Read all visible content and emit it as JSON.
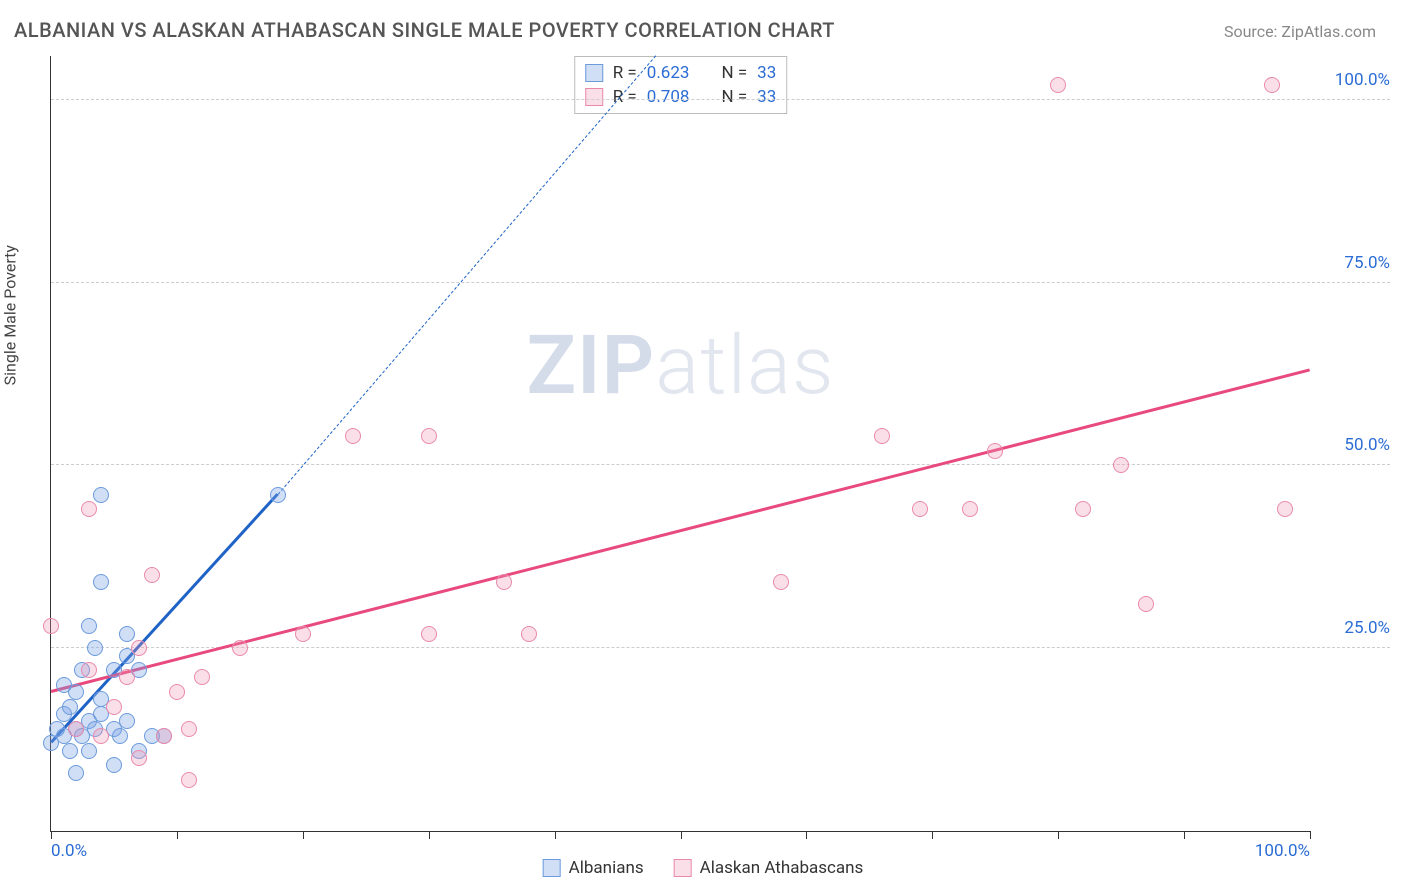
{
  "title": "ALBANIAN VS ALASKAN ATHABASCAN SINGLE MALE POVERTY CORRELATION CHART",
  "source": "Source: ZipAtlas.com",
  "ylabel": "Single Male Poverty",
  "watermark_zip": "ZIP",
  "watermark_atlas": "atlas",
  "chart": {
    "type": "scatter",
    "xlim": [
      0,
      100
    ],
    "ylim": [
      0,
      106
    ],
    "grid_color": "#cccccc",
    "background_color": "#ffffff",
    "y_ticks": [
      25,
      50,
      75,
      100
    ],
    "y_tick_labels": [
      "25.0%",
      "50.0%",
      "75.0%",
      "100.0%"
    ],
    "x_ticks": [
      0,
      10,
      20,
      30,
      40,
      50,
      60,
      70,
      80,
      90,
      100
    ],
    "x_end_labels": {
      "0": "0.0%",
      "100": "100.0%"
    },
    "marker_radius": 8,
    "marker_border_width": 1.5,
    "series": [
      {
        "name": "Albanians",
        "fill": "rgba(120,160,230,0.35)",
        "stroke": "#6c9bdc",
        "trend_color": "#1f63c7",
        "trend_width": 2.5,
        "trend": {
          "x1": 0,
          "y1": 12,
          "x2": 18,
          "y2": 46
        },
        "trend_dash_extend": {
          "x1": 18,
          "y1": 46,
          "x2": 48,
          "y2": 106
        },
        "R": "0.623",
        "N": "33",
        "points": [
          [
            0,
            12
          ],
          [
            0.5,
            14
          ],
          [
            1,
            13
          ],
          [
            1,
            16
          ],
          [
            1.5,
            11
          ],
          [
            1.5,
            17
          ],
          [
            2,
            14
          ],
          [
            2,
            19
          ],
          [
            2.5,
            13
          ],
          [
            2.5,
            22
          ],
          [
            3,
            15
          ],
          [
            3,
            28
          ],
          [
            3.5,
            14
          ],
          [
            3.5,
            25
          ],
          [
            4,
            16
          ],
          [
            4,
            34
          ],
          [
            4,
            46
          ],
          [
            5,
            14
          ],
          [
            5,
            22
          ],
          [
            5,
            9
          ],
          [
            5.5,
            13
          ],
          [
            6,
            15
          ],
          [
            6,
            24
          ],
          [
            6,
            27
          ],
          [
            7,
            22
          ],
          [
            7,
            11
          ],
          [
            8,
            13
          ],
          [
            9,
            13
          ],
          [
            3,
            11
          ],
          [
            2,
            8
          ],
          [
            1,
            20
          ],
          [
            4,
            18
          ],
          [
            18,
            46
          ]
        ]
      },
      {
        "name": "Alaskan Athabascans",
        "fill": "rgba(240,150,180,0.30)",
        "stroke": "#e98aac",
        "trend_color": "#e84a7e",
        "trend_width": 2.5,
        "trend": {
          "x1": 0,
          "y1": 19,
          "x2": 100,
          "y2": 63
        },
        "R": "0.708",
        "N": "33",
        "points": [
          [
            0,
            28
          ],
          [
            2,
            14
          ],
          [
            3,
            44
          ],
          [
            3,
            22
          ],
          [
            4,
            13
          ],
          [
            5,
            17
          ],
          [
            6,
            21
          ],
          [
            7,
            10
          ],
          [
            7,
            25
          ],
          [
            8,
            35
          ],
          [
            9,
            13
          ],
          [
            10,
            19
          ],
          [
            11,
            7
          ],
          [
            11,
            14
          ],
          [
            12,
            21
          ],
          [
            15,
            25
          ],
          [
            20,
            27
          ],
          [
            24,
            54
          ],
          [
            30,
            54
          ],
          [
            30,
            27
          ],
          [
            36,
            34
          ],
          [
            38,
            27
          ],
          [
            58,
            34
          ],
          [
            66,
            54
          ],
          [
            69,
            44
          ],
          [
            73,
            44
          ],
          [
            75,
            52
          ],
          [
            82,
            44
          ],
          [
            80,
            102
          ],
          [
            85,
            50
          ],
          [
            87,
            31
          ],
          [
            97,
            102
          ],
          [
            98,
            44
          ]
        ]
      }
    ]
  },
  "legend_top_labels": {
    "R": "R =",
    "N": "N ="
  },
  "legend_bottom": [
    "Albanians",
    "Alaskan Athabascans"
  ]
}
